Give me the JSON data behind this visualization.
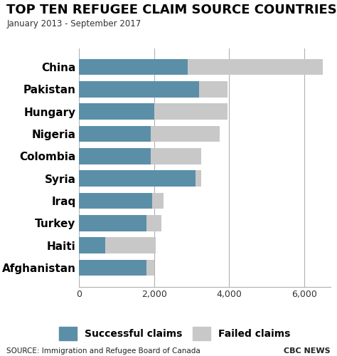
{
  "title": "TOP TEN REFUGEE CLAIM SOURCE COUNTRIES",
  "subtitle": "January 2013 - September 2017",
  "countries": [
    "China",
    "Pakistan",
    "Hungary",
    "Nigeria",
    "Colombia",
    "Syria",
    "Iraq",
    "Turkey",
    "Haiti",
    "Afghanistan"
  ],
  "successful": [
    2900,
    3200,
    2000,
    1900,
    1900,
    3100,
    1950,
    1800,
    700,
    1800
  ],
  "failed": [
    3600,
    750,
    1950,
    1850,
    1350,
    150,
    300,
    400,
    1350,
    200
  ],
  "color_successful": "#5b8fa8",
  "color_failed": "#c8c8c8",
  "xlim": [
    0,
    6700
  ],
  "xticks": [
    0,
    2000,
    4000,
    6000
  ],
  "xtick_labels": [
    "0",
    "2,000",
    "4,000",
    "6,000"
  ],
  "xlabel_successful": "Successful claims",
  "xlabel_failed": "Failed claims",
  "source_text": "SOURCE: Immigration and Refugee Board of Canada",
  "source_logo": "CBC NEWS",
  "background_color": "#ffffff",
  "title_fontsize": 13,
  "subtitle_fontsize": 8.5,
  "ylabel_fontsize": 11,
  "xtick_fontsize": 9,
  "legend_fontsize": 10,
  "bar_height": 0.72
}
